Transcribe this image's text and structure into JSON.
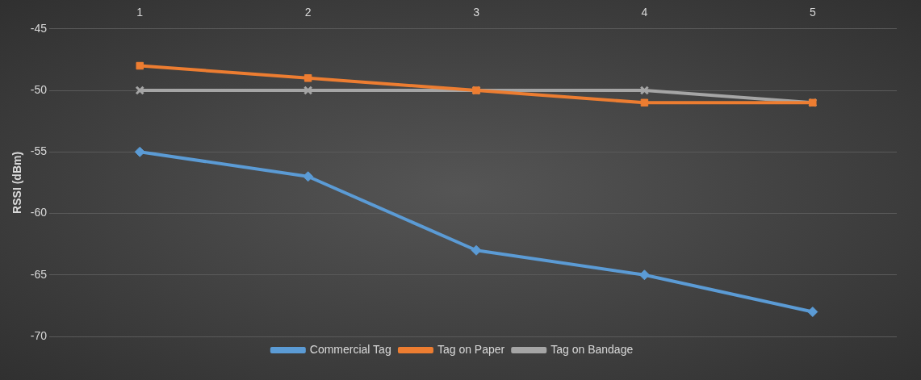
{
  "chart_data": {
    "type": "line",
    "ylabel": "RSSI (dBm)",
    "categories": [
      "1",
      "2",
      "3",
      "4",
      "5"
    ],
    "series": [
      {
        "name": "Commercial Tag",
        "color": "#5b9bd5",
        "marker": "diamond",
        "values": [
          -55,
          -57,
          -63,
          -65,
          -68
        ]
      },
      {
        "name": "Tag on Paper",
        "color": "#ed7d31",
        "marker": "square",
        "values": [
          -48,
          -49,
          -50,
          -51,
          -51
        ]
      },
      {
        "name": "Tag on Bandage",
        "color": "#a5a5a5",
        "marker": "cross",
        "values": [
          -50,
          -50,
          -50,
          -50,
          -51
        ]
      }
    ],
    "ylim": [
      -70,
      -45
    ],
    "yticks": [
      -45,
      -50,
      -55,
      -60,
      -65,
      -70
    ],
    "grid": "y",
    "legend": "bottom"
  }
}
